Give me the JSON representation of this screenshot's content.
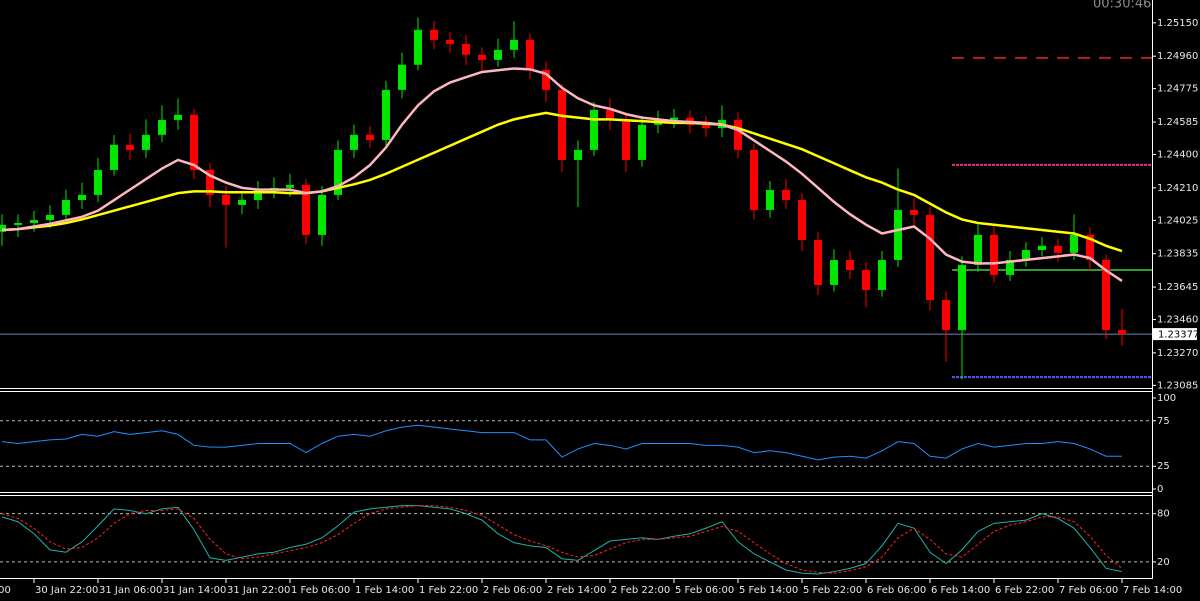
{
  "timer": "00:30:46",
  "chart_data": [
    {
      "type": "candlestick",
      "up_color": "#00e600",
      "down_color": "#ff0000",
      "ylim": [
        1.2307,
        1.2528
      ],
      "yticks": [
        {
          "value": 1.2515,
          "label": "1.25150"
        },
        {
          "value": 1.2496,
          "label": "1.24960"
        },
        1.24775,
        1.24585,
        {
          "value": 1.244,
          "label": "1.24400"
        },
        {
          "value": 1.2421,
          "label": "1.24210"
        },
        1.24025,
        1.23835,
        1.23645,
        {
          "value": 1.2346,
          "label": "1.23460"
        },
        {
          "value": 1.2327,
          "label": "1.23270"
        },
        1.23085
      ],
      "last_price": 1.23377,
      "last_price_color": "#6f86b8",
      "categories": [
        null,
        null,
        "30 Jan 22:00",
        null,
        null,
        null,
        "31 Jan 06:00",
        null,
        null,
        null,
        "31 Jan 14:00",
        null,
        null,
        null,
        "31 Jan 22:00",
        null,
        null,
        null,
        "1 Feb 06:00",
        null,
        null,
        null,
        "1 Feb 14:00",
        null,
        null,
        null,
        "1 Feb 22:00",
        null,
        null,
        null,
        "2 Feb 06:00",
        null,
        null,
        null,
        "2 Feb 14:00",
        null,
        null,
        null,
        "2 Feb 22:00",
        null,
        null,
        null,
        "5 Feb 06:00",
        null,
        null,
        null,
        "5 Feb 14:00",
        null,
        null,
        null,
        "5 Feb 22:00",
        null,
        null,
        null,
        "6 Feb 06:00",
        null,
        null,
        null,
        "6 Feb 14:00",
        null,
        null,
        null,
        "6 Feb 22:00",
        null,
        null,
        null,
        "7 Feb 06:00",
        null,
        null,
        null,
        "7 Feb 14:00"
      ],
      "clipped_time_label": "14:00",
      "candles": {
        "open": [
          1.2396,
          1.23999,
          1.2401,
          1.24027,
          1.24056,
          1.24141,
          1.2417,
          1.24312,
          1.24455,
          1.24426,
          1.24512,
          1.24597,
          1.24626,
          1.24312,
          1.2417,
          1.24113,
          1.24141,
          1.24198,
          1.2421,
          1.24227,
          1.23942,
          1.2417,
          1.24426,
          1.24512,
          1.24483,
          1.24768,
          1.24911,
          1.2511,
          1.25053,
          1.2503,
          1.24968,
          1.24939,
          1.24996,
          1.25053,
          1.24882,
          1.24768,
          1.24369,
          1.24426,
          1.24654,
          1.24597,
          1.24369,
          1.24569,
          1.24597,
          1.2461,
          1.24569,
          1.2455,
          1.24597,
          1.24426,
          1.24084,
          1.24198,
          1.24141,
          1.23913,
          1.23657,
          1.23799,
          1.23742,
          1.23628,
          1.23799,
          1.24084,
          1.24056,
          1.23571,
          1.234,
          1.23771,
          1.23942,
          1.23714,
          1.23799,
          1.23856,
          1.2388,
          1.2384,
          1.23942,
          1.23799,
          1.234
        ],
        "high": [
          1.2406,
          1.2406,
          1.2408,
          1.2411,
          1.242,
          1.2424,
          1.2438,
          1.2451,
          1.2452,
          1.246,
          1.2468,
          1.2472,
          1.2466,
          1.2435,
          1.2422,
          1.2419,
          1.2425,
          1.2427,
          1.2429,
          1.2426,
          1.2422,
          1.2448,
          1.2457,
          1.2456,
          1.2482,
          1.2498,
          1.2518,
          1.2516,
          1.251,
          1.2508,
          1.2501,
          1.2506,
          1.2516,
          1.2509,
          1.2493,
          1.248,
          1.2448,
          1.247,
          1.2472,
          1.2464,
          1.2462,
          1.2465,
          1.2466,
          1.2465,
          1.2462,
          1.2468,
          1.2464,
          1.2446,
          1.2425,
          1.2426,
          1.2418,
          1.2396,
          1.2386,
          1.2385,
          1.2379,
          1.2385,
          1.2432,
          1.2415,
          1.241,
          1.2362,
          1.2382,
          1.24,
          1.2399,
          1.2385,
          1.239,
          1.2393,
          1.2392,
          1.2406,
          1.2398,
          1.2383,
          1.2352
        ],
        "low": [
          1.2388,
          1.2393,
          1.2396,
          1.2398,
          1.2402,
          1.2409,
          1.2413,
          1.2428,
          1.2437,
          1.2438,
          1.2447,
          1.2454,
          1.2426,
          1.241,
          1.2387,
          1.2406,
          1.2409,
          1.2415,
          1.2416,
          1.2389,
          1.2388,
          1.2414,
          1.2438,
          1.2444,
          1.2445,
          1.2472,
          1.2488,
          1.25,
          1.2498,
          1.2491,
          1.2488,
          1.249,
          1.2495,
          1.2483,
          1.247,
          1.243,
          1.241,
          1.2439,
          1.2454,
          1.243,
          1.2433,
          1.2452,
          1.2455,
          1.2452,
          1.245,
          1.245,
          1.2438,
          1.2403,
          1.2404,
          1.2409,
          1.2385,
          1.236,
          1.2362,
          1.2369,
          1.2353,
          1.2359,
          1.2376,
          1.24,
          1.2351,
          1.2322,
          1.2312,
          1.2373,
          1.2367,
          1.2368,
          1.2376,
          1.2382,
          1.2379,
          1.238,
          1.2374,
          1.2335,
          1.2331
        ],
        "close": [
          1.23999,
          1.2401,
          1.24027,
          1.24056,
          1.24141,
          1.2417,
          1.24312,
          1.24455,
          1.24426,
          1.24512,
          1.24597,
          1.24626,
          1.24312,
          1.2417,
          1.24113,
          1.24141,
          1.24198,
          1.2421,
          1.24227,
          1.23942,
          1.2417,
          1.24426,
          1.24512,
          1.24483,
          1.24768,
          1.24911,
          1.2511,
          1.25053,
          1.2503,
          1.24968,
          1.24939,
          1.24996,
          1.25053,
          1.24882,
          1.24768,
          1.24369,
          1.24426,
          1.24654,
          1.24597,
          1.24369,
          1.24569,
          1.24597,
          1.2461,
          1.24569,
          1.2455,
          1.24597,
          1.24426,
          1.24084,
          1.24198,
          1.24141,
          1.23913,
          1.23657,
          1.23799,
          1.23742,
          1.23628,
          1.23799,
          1.24084,
          1.24056,
          1.23571,
          1.234,
          1.23771,
          1.23942,
          1.23714,
          1.23799,
          1.23856,
          1.2388,
          1.2384,
          1.23942,
          1.23799,
          1.234,
          1.23377
        ]
      },
      "lines": [
        {
          "color": "#ffff00",
          "values": [
            1.2397,
            1.23975,
            1.23985,
            1.23995,
            1.2401,
            1.2403,
            1.24055,
            1.2408,
            1.24105,
            1.2413,
            1.24155,
            1.2418,
            1.2419,
            1.2419,
            1.24185,
            1.24185,
            1.24185,
            1.24185,
            1.2418,
            1.2418,
            1.2419,
            1.2421,
            1.2423,
            1.24255,
            1.2429,
            1.2433,
            1.2437,
            1.2441,
            1.2445,
            1.2449,
            1.2453,
            1.2457,
            1.246,
            1.2462,
            1.24637,
            1.2462,
            1.2461,
            1.246,
            1.246,
            1.24595,
            1.2459,
            1.24585,
            1.2458,
            1.2458,
            1.24575,
            1.2457,
            1.2455,
            1.2452,
            1.2449,
            1.2446,
            1.2443,
            1.2439,
            1.2435,
            1.2431,
            1.2427,
            1.2424,
            1.242,
            1.2417,
            1.2412,
            1.2407,
            1.2403,
            1.2401,
            1.24,
            1.2399,
            1.2398,
            1.2397,
            1.2396,
            1.2395,
            1.2392,
            1.2388,
            1.2385
          ]
        },
        {
          "color": "#ffb6c1",
          "values": [
            1.2397,
            1.23975,
            1.2399,
            1.24005,
            1.24025,
            1.24045,
            1.2408,
            1.2414,
            1.242,
            1.2426,
            1.2432,
            1.24369,
            1.2434,
            1.2428,
            1.2424,
            1.2421,
            1.242,
            1.242,
            1.242,
            1.2418,
            1.2419,
            1.2422,
            1.2427,
            1.2434,
            1.2444,
            1.2457,
            1.2468,
            1.2476,
            1.2481,
            1.2484,
            1.2487,
            1.2488,
            1.2489,
            1.24885,
            1.2486,
            1.2478,
            1.2472,
            1.2468,
            1.2466,
            1.2463,
            1.2461,
            1.246,
            1.2459,
            1.24585,
            1.2458,
            1.2457,
            1.2454,
            1.2448,
            1.2442,
            1.2436,
            1.2429,
            1.2421,
            1.2413,
            1.2406,
            1.24,
            1.2395,
            1.2397,
            1.2399,
            1.2392,
            1.2383,
            1.2379,
            1.2378,
            1.2378,
            1.2379,
            1.238,
            1.2381,
            1.2382,
            1.2383,
            1.2381,
            1.2374,
            1.2368
          ]
        }
      ],
      "levels": [
        {
          "value": 1.2495,
          "color": "#b22222",
          "dash": "12 9"
        },
        {
          "value": 1.24341,
          "color": "#e0308f",
          "dash": "3 1"
        },
        {
          "value": 1.23742,
          "color": "#2e9b2e",
          "dash": ""
        },
        {
          "value": 1.23132,
          "color": "#4a5cff",
          "dash": "3 1"
        }
      ]
    },
    {
      "type": "line",
      "ylim": [
        -3.3,
        106.6
      ],
      "yticks": [
        0,
        25,
        75,
        100
      ],
      "levels": [
        25,
        75
      ],
      "series": [
        {
          "color": "#1e90ff",
          "values": [
            52,
            50,
            52,
            54,
            55,
            60,
            58,
            63,
            60,
            62,
            64,
            60,
            48,
            46,
            46,
            48,
            50,
            50,
            50,
            40,
            50,
            58,
            60,
            58,
            64,
            68,
            70,
            68,
            66,
            64,
            62,
            62,
            62,
            54,
            54,
            35,
            44,
            50,
            48,
            44,
            50,
            50,
            50,
            50,
            48,
            48,
            46,
            40,
            42,
            40,
            36,
            32,
            35,
            36,
            34,
            42,
            52,
            50,
            36,
            34,
            44,
            50,
            46,
            48,
            50,
            50,
            52,
            50,
            44,
            36,
            36
          ]
        }
      ]
    },
    {
      "type": "line",
      "ylim": [
        0,
        102
      ],
      "yticks": [
        20,
        80
      ],
      "grid": true,
      "series": [
        {
          "color": "#20b2aa",
          "dash": "",
          "values": [
            76,
            70,
            55,
            35,
            32,
            45,
            65,
            86,
            84,
            80,
            86,
            88,
            60,
            25,
            22,
            26,
            30,
            32,
            38,
            42,
            50,
            65,
            82,
            86,
            88,
            90,
            90,
            88,
            86,
            80,
            72,
            55,
            44,
            40,
            38,
            24,
            22,
            34,
            46,
            48,
            50,
            48,
            52,
            55,
            62,
            70,
            45,
            30,
            20,
            10,
            6,
            5,
            8,
            12,
            18,
            40,
            68,
            62,
            32,
            18,
            35,
            58,
            68,
            70,
            72,
            80,
            74,
            62,
            38,
            12,
            8
          ]
        },
        {
          "color": "#ff2020",
          "dash": "3 2",
          "values": [
            80,
            74,
            62,
            45,
            36,
            38,
            50,
            68,
            80,
            84,
            84,
            86,
            74,
            48,
            30,
            24,
            26,
            30,
            34,
            38,
            44,
            54,
            68,
            80,
            86,
            88,
            90,
            90,
            88,
            84,
            78,
            66,
            54,
            46,
            40,
            32,
            26,
            28,
            36,
            44,
            48,
            48,
            50,
            52,
            58,
            64,
            58,
            44,
            30,
            18,
            10,
            7,
            6,
            9,
            14,
            26,
            50,
            62,
            48,
            30,
            26,
            42,
            58,
            66,
            70,
            76,
            76,
            70,
            52,
            28,
            12
          ]
        }
      ]
    }
  ]
}
